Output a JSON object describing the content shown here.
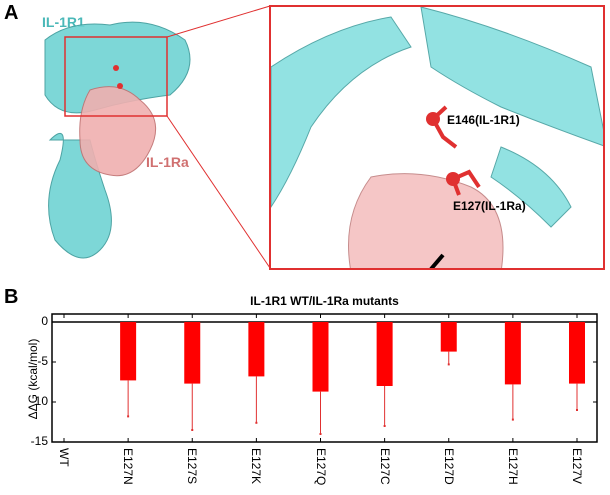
{
  "panel_a": {
    "letter": "A",
    "labels": {
      "receptor": "IL-1R1",
      "antagonist": "IL-1Ra",
      "residue1": "E146(IL-1R1)",
      "residue2": "E127(IL-1Ra)"
    },
    "colors": {
      "receptor": "#5fc8c8",
      "antagonist": "#e8a0a0",
      "highlight": "#e03030"
    }
  },
  "panel_b": {
    "letter": "B"
  },
  "chart_data": {
    "type": "bar",
    "title": "IL-1R1 WT/IL-1Ra mutants",
    "xlabel": "",
    "ylabel": "ΔΔG (kcal/mol)",
    "ylim": [
      -15,
      1
    ],
    "yticks": [
      0,
      -5,
      -10,
      -15
    ],
    "categories": [
      "WT",
      "E127N",
      "E127S",
      "E127K",
      "E127Q",
      "E127C",
      "E127D",
      "E127H",
      "E127V"
    ],
    "values": [
      0,
      -7.3,
      -7.7,
      -6.8,
      -8.7,
      -8.0,
      -3.7,
      -7.8,
      -7.7
    ],
    "error_lower": [
      0,
      -11.8,
      -13.5,
      -12.6,
      -14.0,
      -13.0,
      -5.3,
      -12.2,
      -11.0
    ],
    "bar_color": "#ff0000",
    "grid": false
  }
}
